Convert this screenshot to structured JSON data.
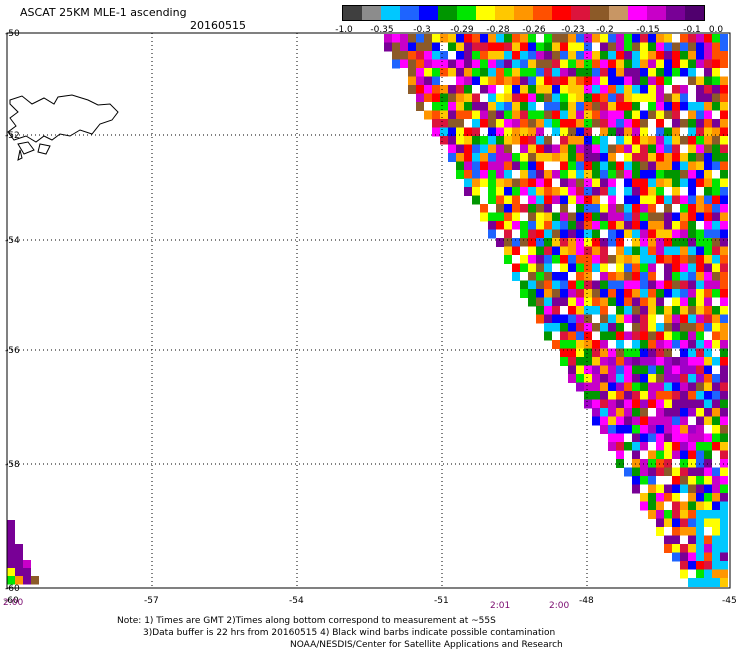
{
  "header": {
    "title": "ASCAT 25KM MLE-1 ascending",
    "date": "20160515"
  },
  "colorbar": {
    "colors": [
      "#3f3f3f",
      "#8c8c8c",
      "#00c8ff",
      "#1e64ff",
      "#0000ff",
      "#009600",
      "#00e600",
      "#ffff00",
      "#ffc800",
      "#ff9600",
      "#ff5000",
      "#ff0000",
      "#dc143c",
      "#8c5a28",
      "#c89664",
      "#ff00ff",
      "#c800c8",
      "#780096",
      "#50006e"
    ],
    "labels": [
      "-1.0",
      "-0.35",
      "-0.3",
      "-0.29",
      "-0.28",
      "-0.26",
      "-0.23",
      "-0.2",
      "-0.15",
      "-0.1",
      "0.0"
    ]
  },
  "axes": {
    "lon_ticks": [
      "-60",
      "-57",
      "-54",
      "-51",
      "-48",
      "-45"
    ],
    "lat_ticks": [
      "-50",
      "-52",
      "-54",
      "-56",
      "-58",
      "-60"
    ]
  },
  "time_labels": [
    "2:00",
    "2:01",
    "2:00"
  ],
  "notes": [
    "Note: 1) Times are GMT 2)Times along bottom correspond to measurement at ~55S",
    "3)Data buffer is 22 hrs from 20160515 4) Black wind barbs indicate possible contamination",
    "NOAA/NESDIS/Center for Satellite Applications and Research"
  ]
}
